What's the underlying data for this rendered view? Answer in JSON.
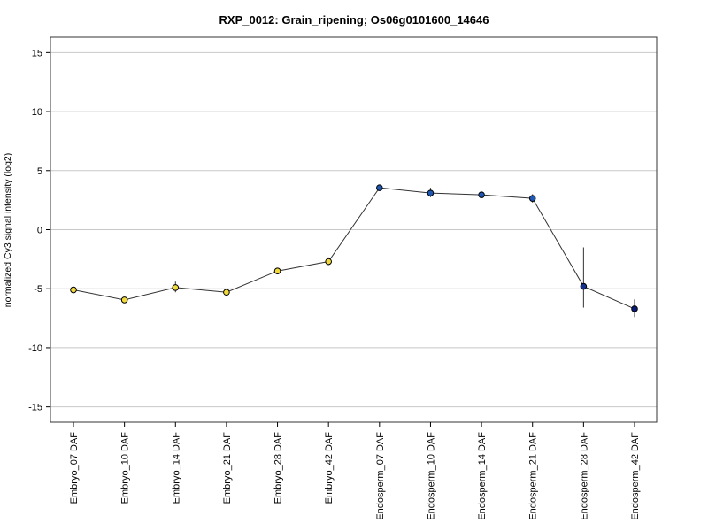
{
  "chart_data": {
    "type": "line",
    "title": "RXP_0012: Grain_ripening; Os06g0101600_14646",
    "xlabel": "",
    "ylabel": "normalized Cy3 signal intensity (log2)",
    "ylim": [
      -16.3,
      16.3
    ],
    "yticks": [
      -15,
      -10,
      -5,
      0,
      5,
      10,
      15
    ],
    "grid": true,
    "categories": [
      "Embryo_07 DAF",
      "Embryo_10 DAF",
      "Embryo_14 DAF",
      "Embryo_21 DAF",
      "Embryo_28 DAF",
      "Embryo_42 DAF",
      "Endosperm_07 DAF",
      "Endosperm_10 DAF",
      "Endosperm_14 DAF",
      "Endosperm_21 DAF",
      "Endosperm_28 DAF",
      "Endosperm_42 DAF"
    ],
    "series": [
      {
        "values": [
          -5.1,
          -5.95,
          -4.9,
          -5.3,
          -3.5,
          -2.7,
          3.55,
          3.1,
          2.95,
          2.65,
          -4.8,
          -6.7
        ],
        "error_low": [
          -5.3,
          -6.1,
          -5.3,
          -5.45,
          -3.7,
          -3.0,
          3.45,
          2.75,
          2.8,
          2.3,
          -6.6,
          -7.4
        ],
        "error_high": [
          -4.9,
          -5.8,
          -4.4,
          -5.15,
          -3.3,
          -2.35,
          3.65,
          3.55,
          3.1,
          3.0,
          -1.5,
          -5.9
        ],
        "point_colors": [
          "#f2d93a",
          "#f2d93a",
          "#f2d93a",
          "#f2d93a",
          "#f2d93a",
          "#f2d93a",
          "#1f57b5",
          "#1f57b5",
          "#1f57b5",
          "#1f57b5",
          "#16308f",
          "#0a1a7a"
        ]
      }
    ],
    "colors": {
      "line": "#333333",
      "grid": "#c8c8c8",
      "point_stroke": "#000000"
    }
  }
}
